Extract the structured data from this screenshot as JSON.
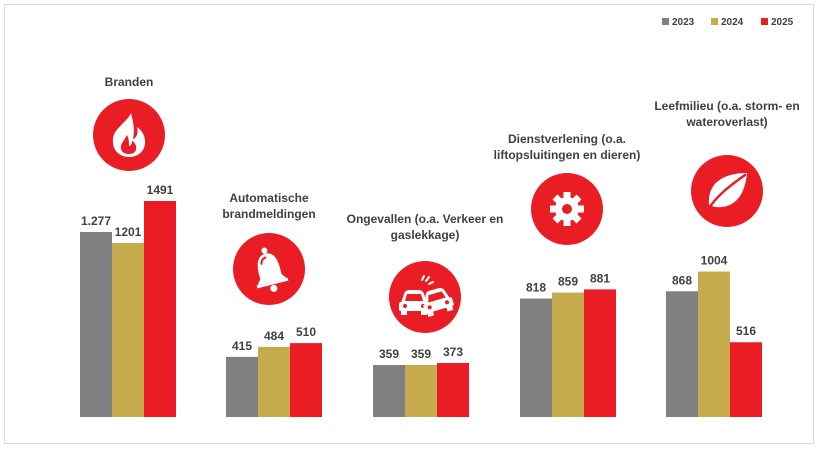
{
  "chart_data": {
    "type": "bar",
    "categories": [
      "Branden",
      "Automatische brandmeldingen",
      "Ongevallen (o.a. Verkeer en gaslekkage)",
      "Dienstverlening (o.a. liftopsluitingen en dieren)",
      "Leefmilieu (o.a. storm- en wateroverlast)"
    ],
    "category_label_lines": [
      [
        "Branden"
      ],
      [
        "Automatische",
        "brandmeldingen"
      ],
      [
        "Ongevallen (o.a. Verkeer en",
        "gaslekkage)"
      ],
      [
        "Dienstverlening (o.a.",
        "liftopsluitingen en dieren)"
      ],
      [
        "Leefmilieu (o.a. storm- en",
        "wateroverlast)"
      ]
    ],
    "category_icons": [
      "fire-icon",
      "bell-icon",
      "car-crash-icon",
      "gear-icon",
      "leaf-icon"
    ],
    "series": [
      {
        "name": "2023",
        "color": "#808080",
        "values": [
          1277,
          415,
          359,
          818,
          868
        ],
        "labels": [
          "1.277",
          "415",
          "359",
          "818",
          "868"
        ]
      },
      {
        "name": "2024",
        "color": "#c6ab4d",
        "values": [
          1201,
          484,
          359,
          859,
          1004
        ],
        "labels": [
          "1201",
          "484",
          "359",
          "859",
          "1004"
        ]
      },
      {
        "name": "2025",
        "color": "#ea1c24",
        "values": [
          1491,
          510,
          373,
          881,
          516
        ],
        "labels": [
          "1491",
          "510",
          "373",
          "881",
          "516"
        ]
      }
    ],
    "ylim": [
      0,
      1491
    ],
    "grid": false,
    "legend_position": "top-right",
    "accent_color": "#ea1c24"
  }
}
